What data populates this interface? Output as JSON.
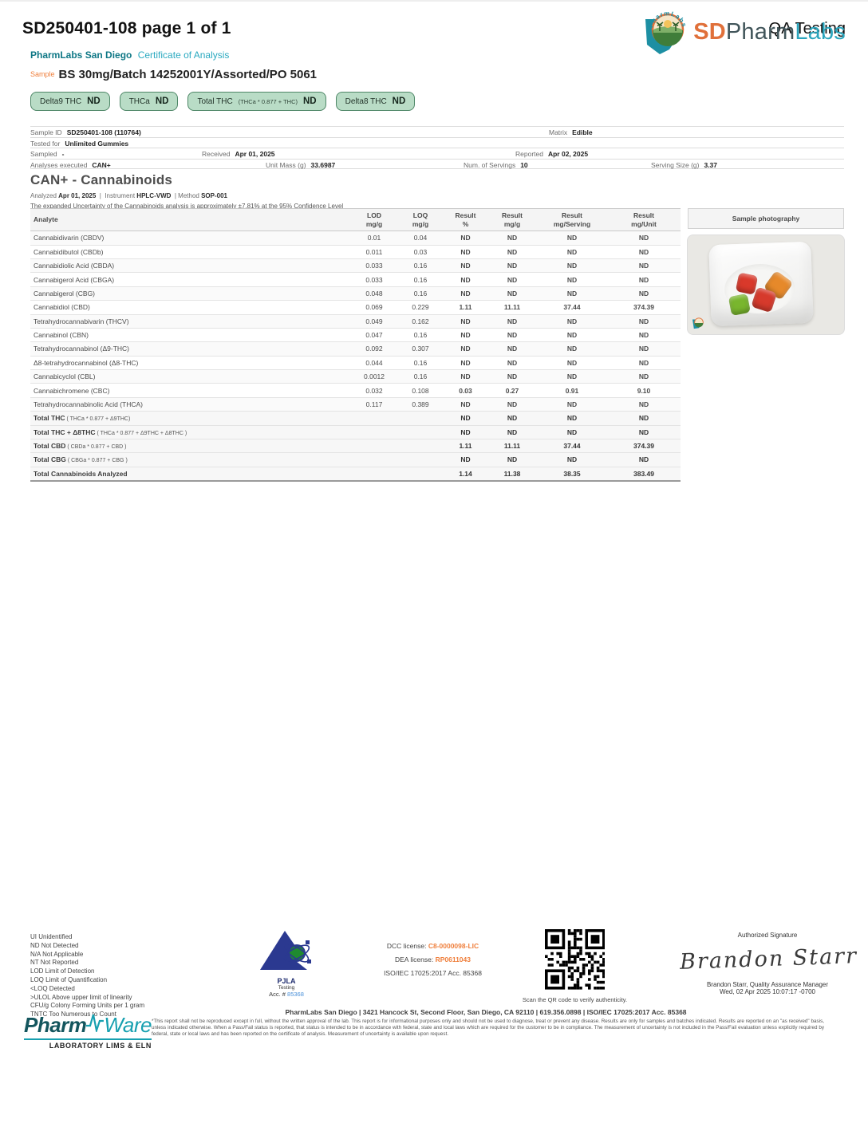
{
  "page": {
    "doc_id": "SD250401-108 page 1 of 1",
    "qa_label": "QA Testing"
  },
  "header": {
    "lab_name": "PharmLabs San Diego",
    "doc_type": "Certificate of Analysis",
    "sample_label": "Sample",
    "sample_name": "BS 30mg/Batch 14252001Y/Assorted/PO 5061",
    "logo": {
      "sd": "SD",
      "pharm": "Pharm",
      "labs": "Labs",
      "arc_text": "PharmLabs"
    },
    "badges": [
      {
        "label": "Delta9 THC",
        "formula": "",
        "value": "ND"
      },
      {
        "label": "THCa",
        "formula": "",
        "value": "ND"
      },
      {
        "label": "Total THC",
        "formula": "(THCa * 0.877 + THC)",
        "value": "ND"
      },
      {
        "label": "Delta8 THC",
        "formula": "",
        "value": "ND"
      }
    ]
  },
  "sample_info": {
    "rows": [
      [
        {
          "label": "Sample ID",
          "value": "SD250401-108 (110764)"
        },
        {
          "label": "Matrix",
          "value": "Edible"
        }
      ],
      [
        {
          "label": "Tested for",
          "value": "Unlimited Gummies"
        }
      ],
      [
        {
          "label": "Sampled",
          "value": "-"
        },
        {
          "label": "Received",
          "value": "Apr 01, 2025"
        },
        {
          "label": "Reported",
          "value": "Apr 02, 2025"
        }
      ],
      [
        {
          "label": "Analyses executed",
          "value": "CAN+"
        },
        {
          "label": "Unit Mass (g)",
          "value": "33.6987"
        },
        {
          "label": "Num. of Servings",
          "value": "10"
        },
        {
          "label": "Serving Size (g)",
          "value": "3.37"
        }
      ]
    ]
  },
  "section": {
    "title": "CAN+ - Cannabinoids",
    "analyzed_label": "Analyzed",
    "analyzed": "Apr 01, 2025",
    "instrument_label": "Instrument",
    "instrument": "HPLC-VWD",
    "method_label": "Method",
    "method": "SOP-001",
    "uncertainty": "The expanded Uncertainty of the Cannabinoids analysis is approximately ±7.81% at the 95% Confidence Level"
  },
  "results_table": {
    "headers": [
      {
        "t": "Analyte",
        "b": ""
      },
      {
        "t": "LOD",
        "b": "mg/g"
      },
      {
        "t": "LOQ",
        "b": "mg/g"
      },
      {
        "t": "Result",
        "b": "%"
      },
      {
        "t": "Result",
        "b": "mg/g"
      },
      {
        "t": "Result",
        "b": "mg/Serving"
      },
      {
        "t": "Result",
        "b": "mg/Unit"
      }
    ],
    "photo_header": "Sample photography",
    "rows": [
      {
        "analyte": "Cannabidivarin (CBDV)",
        "formula": "",
        "lod": "0.01",
        "loq": "0.04",
        "pct": "ND",
        "mgg": "ND",
        "serving": "ND",
        "unit": "ND",
        "color": "nd",
        "total": false
      },
      {
        "analyte": "Cannabidibutol (CBDb)",
        "formula": "",
        "lod": "0.011",
        "loq": "0.03",
        "pct": "ND",
        "mgg": "ND",
        "serving": "ND",
        "unit": "ND",
        "color": "nd",
        "total": false
      },
      {
        "analyte": "Cannabidiolic Acid (CBDA)",
        "formula": "",
        "lod": "0.033",
        "loq": "0.16",
        "pct": "ND",
        "mgg": "ND",
        "serving": "ND",
        "unit": "ND",
        "color": "nd",
        "total": false
      },
      {
        "analyte": "Cannabigerol Acid (CBGA)",
        "formula": "",
        "lod": "0.033",
        "loq": "0.16",
        "pct": "ND",
        "mgg": "ND",
        "serving": "ND",
        "unit": "ND",
        "color": "nd",
        "total": false
      },
      {
        "analyte": "Cannabigerol (CBG)",
        "formula": "",
        "lod": "0.048",
        "loq": "0.16",
        "pct": "ND",
        "mgg": "ND",
        "serving": "ND",
        "unit": "ND",
        "color": "nd",
        "total": false
      },
      {
        "analyte": "Cannabidiol (CBD)",
        "formula": "",
        "lod": "0.069",
        "loq": "0.229",
        "pct": "1.11",
        "mgg": "11.11",
        "serving": "37.44",
        "unit": "374.39",
        "color": "det",
        "total": false
      },
      {
        "analyte": "Tetrahydrocannabivarin (THCV)",
        "formula": "",
        "lod": "0.049",
        "loq": "0.162",
        "pct": "ND",
        "mgg": "ND",
        "serving": "ND",
        "unit": "ND",
        "color": "nd",
        "total": false
      },
      {
        "analyte": "Cannabinol (CBN)",
        "formula": "",
        "lod": "0.047",
        "loq": "0.16",
        "pct": "ND",
        "mgg": "ND",
        "serving": "ND",
        "unit": "ND",
        "color": "nd",
        "total": false
      },
      {
        "analyte": "Tetrahydrocannabinol (Δ9-THC)",
        "formula": "",
        "lod": "0.092",
        "loq": "0.307",
        "pct": "ND",
        "mgg": "ND",
        "serving": "ND",
        "unit": "ND",
        "color": "nd",
        "total": false
      },
      {
        "analyte": "Δ8-tetrahydrocannabinol (Δ8-THC)",
        "formula": "",
        "lod": "0.044",
        "loq": "0.16",
        "pct": "ND",
        "mgg": "ND",
        "serving": "ND",
        "unit": "ND",
        "color": "nd",
        "total": false
      },
      {
        "analyte": "Cannabicyclol (CBL)",
        "formula": "",
        "lod": "0.0012",
        "loq": "0.16",
        "pct": "ND",
        "mgg": "ND",
        "serving": "ND",
        "unit": "ND",
        "color": "nd",
        "total": false
      },
      {
        "analyte": "Cannabichromene (CBC)",
        "formula": "",
        "lod": "0.032",
        "loq": "0.108",
        "pct": "0.03",
        "mgg": "0.27",
        "serving": "0.91",
        "unit": "9.10",
        "color": "det",
        "total": false
      },
      {
        "analyte": "Tetrahydrocannabinolic Acid (THCA)",
        "formula": "",
        "lod": "0.117",
        "loq": "0.389",
        "pct": "ND",
        "mgg": "ND",
        "serving": "ND",
        "unit": "ND",
        "color": "nd",
        "total": false
      },
      {
        "analyte": "Total THC",
        "formula": "( THCa * 0.877 + Δ9THC)",
        "lod": "",
        "loq": "",
        "pct": "ND",
        "mgg": "ND",
        "serving": "ND",
        "unit": "ND",
        "color": "blk",
        "total": true
      },
      {
        "analyte": "Total THC + Δ8THC",
        "formula": "( THCa * 0.877 + Δ9THC + Δ8THC )",
        "lod": "",
        "loq": "",
        "pct": "ND",
        "mgg": "ND",
        "serving": "ND",
        "unit": "ND",
        "color": "blk",
        "total": true
      },
      {
        "analyte": "Total CBD",
        "formula": "( CBDa * 0.877 + CBD )",
        "lod": "",
        "loq": "",
        "pct": "1.11",
        "mgg": "11.11",
        "serving": "37.44",
        "unit": "374.39",
        "color": "blk",
        "total": true
      },
      {
        "analyte": "Total CBG",
        "formula": "( CBGa * 0.877 + CBG )",
        "lod": "",
        "loq": "",
        "pct": "ND",
        "mgg": "ND",
        "serving": "ND",
        "unit": "ND",
        "color": "blk",
        "total": true
      },
      {
        "analyte": "Total Cannabinoids Analyzed",
        "formula": "",
        "lod": "",
        "loq": "",
        "pct": "1.14",
        "mgg": "11.38",
        "serving": "38.35",
        "unit": "383.49",
        "color": "blk",
        "total": true,
        "grand": true
      }
    ]
  },
  "footer": {
    "legend": [
      "UI Unidentified",
      "ND Not Detected",
      "N/A Not Applicable",
      "NT Not Reported",
      "LOD Limit of Detection",
      "LOQ Limit of Quantification",
      "<LOQ Detected",
      ">ULOL Above upper limit of linearity",
      "CFU/g Colony Forming Units per 1 gram",
      "TNTC Too Numerous to Count"
    ],
    "pjla": {
      "name": "PJLA",
      "sub": "Testing",
      "acc_label": "Acc. #",
      "acc_num": "85368"
    },
    "licenses": {
      "dcc_label": "DCC license:",
      "dcc_value": "C8-0000098-LIC",
      "dea_label": "DEA license:",
      "dea_value": "RP0611043",
      "iso": "ISO/IEC 17025:2017 Acc. 85368"
    },
    "qr_caption": "Scan the QR code to verify authenticity.",
    "signature": {
      "title": "Authorized Signature",
      "script": "Brandon Starr",
      "line1": "Brandon Starr, Quality Assurance Manager",
      "line2": "Wed, 02 Apr 2025 10:07:17 -0700"
    }
  },
  "bottom": {
    "pharmware": {
      "part1": "Pharm",
      "part2": "Ware",
      "sub": "LABORATORY LIMS & ELN"
    },
    "address": "PharmLabs San Diego | 3421 Hancock St, Second Floor, San Diego, CA 92110 | 619.356.0898 | ISO/IEC 17025:2017 Acc. 85368",
    "disclaimer": "*This report shall not be reproduced except in full, without the written approval of the lab. This report is for informational purposes only and should not be used to diagnose, treat or prevent any disease. Results are only for samples and batches indicated. Results are reported on an \"as received\" basis, unless indicated otherwise. When a Pass/Fail status is reported, that status is intended to be in accordance with federal, state and local laws which are required for the customer to be in compliance. The measurement of uncertainty is not included in the Pass/Fail evaluation unless explicitly required by federal, state or local laws and has been reported on the certificate of analysis. Measurement of uncertainty is available upon request."
  },
  "colors": {
    "teal": "#2aa9c0",
    "dark_teal": "#0e7785",
    "orange": "#ef7f3c",
    "nd_green": "#3e9674",
    "detected_blue": "#4b5cb0",
    "badge_bg": "#b9dcc6",
    "badge_border": "#4e8767"
  }
}
